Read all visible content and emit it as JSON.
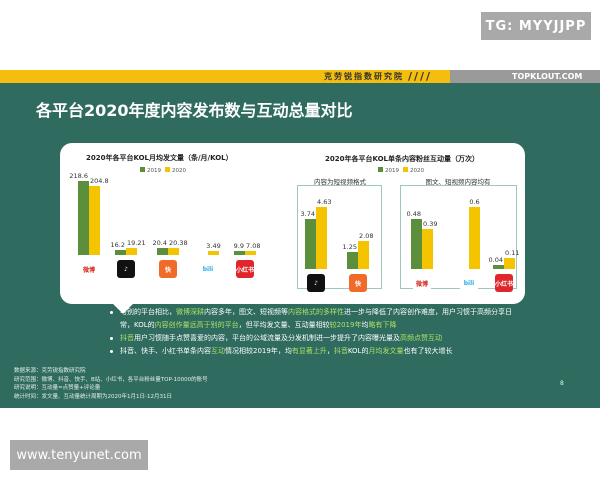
{
  "watermark_top": "TG: MYYJJPP",
  "watermark_bottom": "www.tenyunet.com",
  "header": {
    "org": "克劳锐指数研究院",
    "brand": "TOPKLOUT.COM",
    "stripes": "////"
  },
  "title": "各平台2020年度内容发布数与互动总量对比",
  "colors": {
    "y2019": "#5b8f3c",
    "y2020": "#f5c400",
    "slide": "#2f6b5f",
    "highlight": "#a9e265"
  },
  "chart1": {
    "title": "2020年各平台KOL月均发文量（条/月/KOL）",
    "legend": [
      "2019",
      "2020"
    ],
    "platforms": [
      {
        "name": "微博",
        "icon": "weibo-icon",
        "v2019": "218.6",
        "v2020": "204.8"
      },
      {
        "name": "抖音",
        "icon": "douyin-icon",
        "v2019": "16.2",
        "v2020": "19.21"
      },
      {
        "name": "快手",
        "icon": "kuaishou-icon",
        "v2019": "20.4",
        "v2020": "20.38"
      },
      {
        "name": "bilibili",
        "icon": "bilibili-icon",
        "v2019": null,
        "v2020": "3.49"
      },
      {
        "name": "小红书",
        "icon": "xiaohongshu-icon",
        "v2019": "9.9",
        "v2020": "7.08"
      }
    ]
  },
  "chart2": {
    "title": "2020年各平台KOL单条内容粉丝互动量（万次）",
    "legend": [
      "2019",
      "2020"
    ],
    "group_left": "内容为短视频格式",
    "group_right": "图文、短视频内容均有",
    "platforms": [
      {
        "name": "抖音",
        "icon": "douyin-icon",
        "v2019": "3.74",
        "v2020": "4.63"
      },
      {
        "name": "快手",
        "icon": "kuaishou-icon",
        "v2019": "1.25",
        "v2020": "2.08"
      },
      {
        "name": "微博",
        "icon": "weibo-icon",
        "v2019": "0.48",
        "v2020": "0.39"
      },
      {
        "name": "bilibili",
        "icon": "bilibili-icon",
        "v2019": null,
        "v2020": "0.6"
      },
      {
        "name": "小红书",
        "icon": "xiaohongshu-icon",
        "v2019": "0.04",
        "v2020": "0.11"
      }
    ]
  },
  "bullets": [
    [
      [
        "与别的平台相比，",
        0
      ],
      [
        "微博深耕",
        1
      ],
      [
        "内容多年，图文、短视频等",
        0
      ],
      [
        "内容格式的多样性",
        1
      ],
      [
        "进一步与降低了内容创作难度，用户习惯于高频分享日常，KOL的",
        0
      ],
      [
        "内容创作量远高于别的平台",
        1
      ],
      [
        "，但平均发文量、互动量相较",
        0
      ],
      [
        "较2019年",
        1
      ],
      [
        "均",
        0
      ],
      [
        "略有下降",
        1
      ]
    ],
    [
      [
        "抖音",
        1
      ],
      [
        "用户习惯随手点赞喜爱的内容，平台的公域流量及分发机制进一步提升了内容曝光量及",
        0
      ],
      [
        "高频点赞互动",
        1
      ]
    ],
    [
      [
        "抖音、快手、小红书单条内容",
        0
      ],
      [
        "互动",
        1
      ],
      [
        "情况相较2019年，均",
        0
      ],
      [
        "有显著上升",
        1
      ],
      [
        "，",
        0
      ],
      [
        "抖音",
        1
      ],
      [
        "KOL的",
        0
      ],
      [
        "月均发文量",
        1
      ],
      [
        "也有了较大增长",
        0
      ]
    ]
  ],
  "notes": [
    "数据来源：克劳锐指数研究院",
    "研究范围：微博、抖音、快手、B站、小红书，各平台粉丝量TOP-10000的账号",
    "研究说明：互动量=点赞量+评论量",
    "统计时间：发文量、互动量统计周期为2020年1月1日-12月31日"
  ],
  "page_number": "8"
}
